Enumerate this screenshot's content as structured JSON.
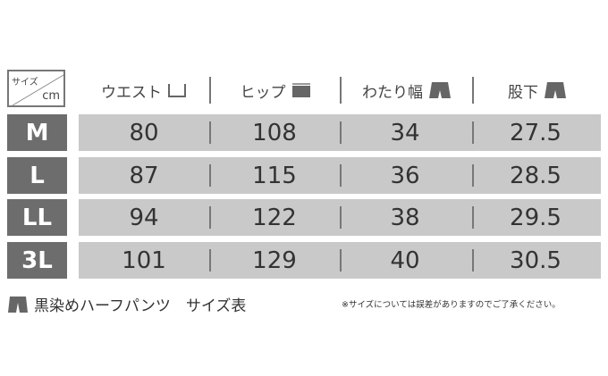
{
  "corner": {
    "top": "サイズ",
    "bottom": "cm"
  },
  "columns": [
    {
      "label": "ウエスト",
      "icon": "waist-icon"
    },
    {
      "label": "ヒップ",
      "icon": "hip-icon"
    },
    {
      "label": "わたり幅",
      "icon": "thigh-width-icon"
    },
    {
      "label": "股下",
      "icon": "inseam-icon"
    }
  ],
  "rows": [
    {
      "size": "M",
      "values": [
        "80",
        "108",
        "34",
        "27.5"
      ]
    },
    {
      "size": "L",
      "values": [
        "87",
        "115",
        "36",
        "28.5"
      ]
    },
    {
      "size": "LL",
      "values": [
        "94",
        "122",
        "38",
        "29.5"
      ]
    },
    {
      "size": "3L",
      "values": [
        "101",
        "129",
        "40",
        "30.5"
      ]
    }
  ],
  "footer": {
    "title": "黒染めハーフパンツ　サイズ表",
    "note": "※サイズについては誤差がありますのでご了承ください。"
  },
  "colors": {
    "label_bg": "#6d6d6d",
    "row_bg": "#c9c9c9"
  }
}
